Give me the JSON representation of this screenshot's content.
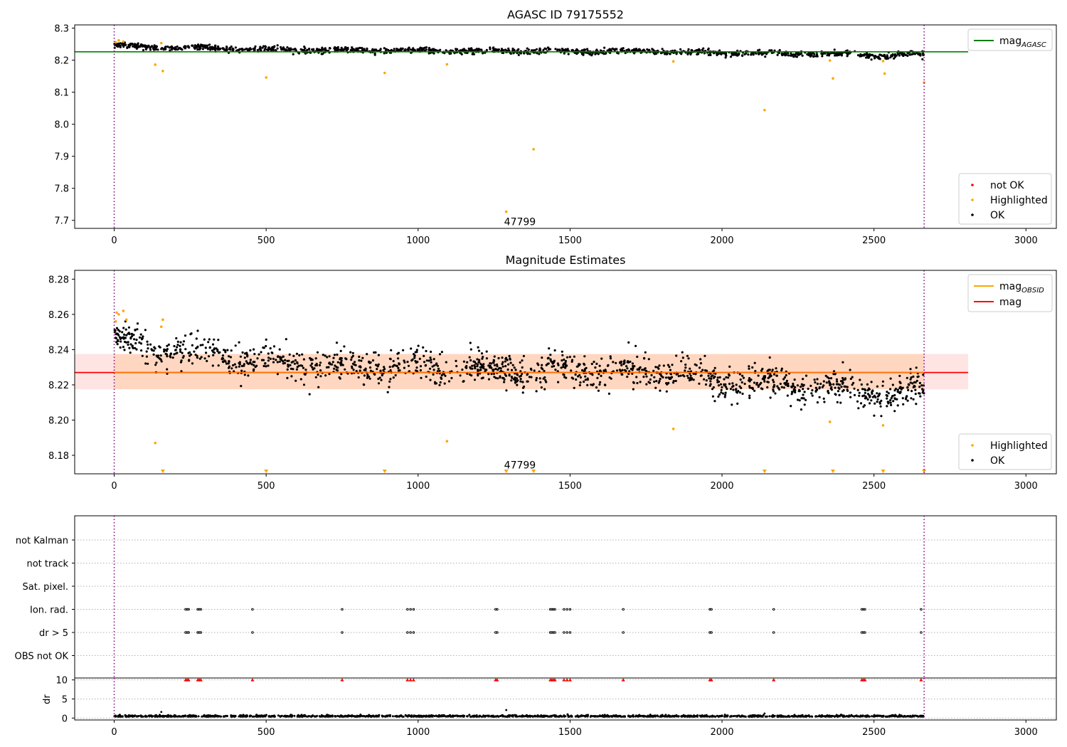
{
  "chart_data": [
    {
      "type": "scatter",
      "title": "AGASC ID 79175552",
      "xlim": [
        -130,
        3100
      ],
      "ylim": [
        7.675,
        8.31
      ],
      "xticks": [
        0,
        500,
        1000,
        1500,
        2000,
        2500,
        3000
      ],
      "yticks": [
        7.7,
        7.8,
        7.9,
        8.0,
        8.1,
        8.2,
        8.3
      ],
      "ytick_labels": [
        "7.7",
        "7.8",
        "7.9",
        "8.0",
        "8.1",
        "8.2",
        "8.3"
      ],
      "reference_line": {
        "name": "mag",
        "subscript": "AGASC",
        "value": 8.226,
        "x_range": [
          -130,
          2810
        ],
        "color": "#008000"
      },
      "obs_boundaries": [
        0,
        2665
      ],
      "series": [
        {
          "name": "not OK",
          "color": "#ff0000",
          "points": []
        },
        {
          "name": "Highlighted",
          "color": "#ffa500",
          "points": [
            [
              5,
              8.256
            ],
            [
              15,
              8.262
            ],
            [
              30,
              8.258
            ],
            [
              135,
              8.186
            ],
            [
              155,
              8.253
            ],
            [
              160,
              8.166
            ],
            [
              500,
              8.146
            ],
            [
              890,
              8.16
            ],
            [
              1095,
              8.187
            ],
            [
              1290,
              7.727
            ],
            [
              1380,
              7.922
            ],
            [
              1840,
              8.196
            ],
            [
              2140,
              8.044
            ],
            [
              2355,
              8.199
            ],
            [
              2365,
              8.143
            ],
            [
              2530,
              8.197
            ],
            [
              2535,
              8.158
            ],
            [
              2665,
              8.13
            ]
          ]
        },
        {
          "name": "OK",
          "color": "#000000",
          "trend": [
            [
              0,
              8.248
            ],
            [
              100,
              8.24
            ],
            [
              200,
              8.24
            ],
            [
              400,
              8.235
            ],
            [
              600,
              8.232
            ],
            [
              800,
              8.23
            ],
            [
              1000,
              8.23
            ],
            [
              1300,
              8.228
            ],
            [
              1500,
              8.228
            ],
            [
              1700,
              8.228
            ],
            [
              1900,
              8.226
            ],
            [
              2000,
              8.222
            ],
            [
              2200,
              8.22
            ],
            [
              2400,
              8.218
            ],
            [
              2550,
              8.213
            ],
            [
              2665,
              8.218
            ]
          ],
          "count": 1300,
          "scatter": 0.008
        }
      ],
      "legend_lines": {
        "placement": "top-right",
        "entries": [
          {
            "label": "mag",
            "subscript": "AGASC",
            "color": "#008000"
          }
        ]
      },
      "legend_markers": {
        "placement": "bottom-right",
        "entries": [
          {
            "label": "not OK",
            "color": "#ff0000"
          },
          {
            "label": "Highlighted",
            "color": "#ffa500"
          },
          {
            "label": "OK",
            "color": "#000000"
          }
        ]
      },
      "annotation": {
        "text": "47799",
        "x": 1290,
        "y": 7.685
      }
    },
    {
      "type": "scatter",
      "title": "Magnitude Estimates",
      "xlim": [
        -130,
        3100
      ],
      "ylim": [
        8.1695,
        8.285
      ],
      "xticks": [
        0,
        500,
        1000,
        1500,
        2000,
        2500,
        3000
      ],
      "yticks": [
        8.18,
        8.2,
        8.22,
        8.24,
        8.26,
        8.28
      ],
      "ytick_labels": [
        "8.18",
        "8.20",
        "8.22",
        "8.24",
        "8.26",
        "8.28"
      ],
      "mag_line": {
        "name": "mag",
        "value": 8.227,
        "color": "#ff0000",
        "band": [
          8.2175,
          8.2375
        ],
        "x_range": [
          -130,
          2810
        ]
      },
      "mag_obsid": {
        "name": "mag",
        "subscript": "OBSID",
        "value": 8.227,
        "color": "#ffa500",
        "band": [
          8.2175,
          8.2375
        ]
      },
      "obs_boundaries": [
        0,
        2665
      ],
      "series": [
        {
          "name": "Highlighted",
          "color": "#ffa500",
          "points": [
            [
              5,
              8.256
            ],
            [
              8,
              8.261
            ],
            [
              15,
              8.26
            ],
            [
              30,
              8.262
            ],
            [
              40,
              8.257
            ],
            [
              135,
              8.187
            ],
            [
              155,
              8.253
            ],
            [
              160,
              8.257
            ],
            [
              1095,
              8.188
            ],
            [
              1840,
              8.195
            ],
            [
              2355,
              8.199
            ],
            [
              2530,
              8.197
            ]
          ]
        },
        {
          "name": "OK",
          "color": "#000000",
          "trend": [
            [
              0,
              8.248
            ],
            [
              100,
              8.24
            ],
            [
              200,
              8.24
            ],
            [
              400,
              8.235
            ],
            [
              600,
              8.232
            ],
            [
              800,
              8.23
            ],
            [
              1000,
              8.23
            ],
            [
              1300,
              8.228
            ],
            [
              1500,
              8.228
            ],
            [
              1700,
              8.228
            ],
            [
              1900,
              8.226
            ],
            [
              2000,
              8.222
            ],
            [
              2200,
              8.22
            ],
            [
              2400,
              8.218
            ],
            [
              2550,
              8.213
            ],
            [
              2665,
              8.218
            ]
          ],
          "count": 1500,
          "scatter": 0.008
        }
      ],
      "offscale_markers": {
        "color": "#ffa500",
        "x": [
          160,
          500,
          890,
          1290,
          1380,
          2140,
          2365,
          2530,
          2665
        ]
      },
      "legend_lines": {
        "placement": "top-right",
        "entries": [
          {
            "label": "mag",
            "subscript": "OBSID",
            "color": "#ffa500"
          },
          {
            "label": "mag",
            "color": "#ff0000"
          }
        ]
      },
      "legend_markers": {
        "placement": "bottom-right",
        "entries": [
          {
            "label": "Highlighted",
            "color": "#ffa500"
          },
          {
            "label": "OK",
            "color": "#000000"
          }
        ]
      },
      "annotation": {
        "text": "47799",
        "x": 1290,
        "y": 8.1725
      }
    },
    {
      "type": "scatter",
      "title": "",
      "xlim": [
        -130,
        3100
      ],
      "flag_rows": [
        "not Kalman",
        "not track",
        "Sat. pixel.",
        "Ion. rad.",
        "dr > 5",
        "OBS not OK"
      ],
      "flag_events": {
        "Ion. rad.": [
          235,
          240,
          245,
          275,
          280,
          285,
          455,
          750,
          965,
          975,
          985,
          1255,
          1260,
          1435,
          1440,
          1445,
          1450,
          1480,
          1490,
          1500,
          1675,
          1960,
          1965,
          2170,
          2460,
          2465,
          2470,
          2655
        ],
        "dr > 5": [
          235,
          240,
          245,
          275,
          280,
          285,
          455,
          750,
          965,
          975,
          985,
          1255,
          1260,
          1435,
          1440,
          1445,
          1450,
          1480,
          1490,
          1500,
          1675,
          1960,
          1965,
          2170,
          2460,
          2465,
          2470,
          2655
        ]
      },
      "dr": {
        "ylabel": "dr",
        "ylim": [
          -0.5,
          10.5
        ],
        "yticks": [
          0,
          5,
          10
        ],
        "ytick_labels": [
          "0",
          "5",
          "10"
        ],
        "baseline": 0.35,
        "spikes": [
          [
            155,
            1.6
          ],
          [
            1290,
            2.1
          ],
          [
            2140,
            1.2
          ]
        ],
        "clipped_color": "#ff0000",
        "clipped_x": [
          235,
          240,
          245,
          275,
          280,
          285,
          455,
          750,
          965,
          975,
          985,
          1255,
          1260,
          1435,
          1440,
          1445,
          1450,
          1480,
          1490,
          1500,
          1675,
          1960,
          1965,
          2170,
          2460,
          2465,
          2470,
          2655
        ]
      },
      "xticks": [
        0,
        500,
        1000,
        1500,
        2000,
        2500,
        3000
      ],
      "obs_boundaries": [
        0,
        2665
      ]
    }
  ]
}
